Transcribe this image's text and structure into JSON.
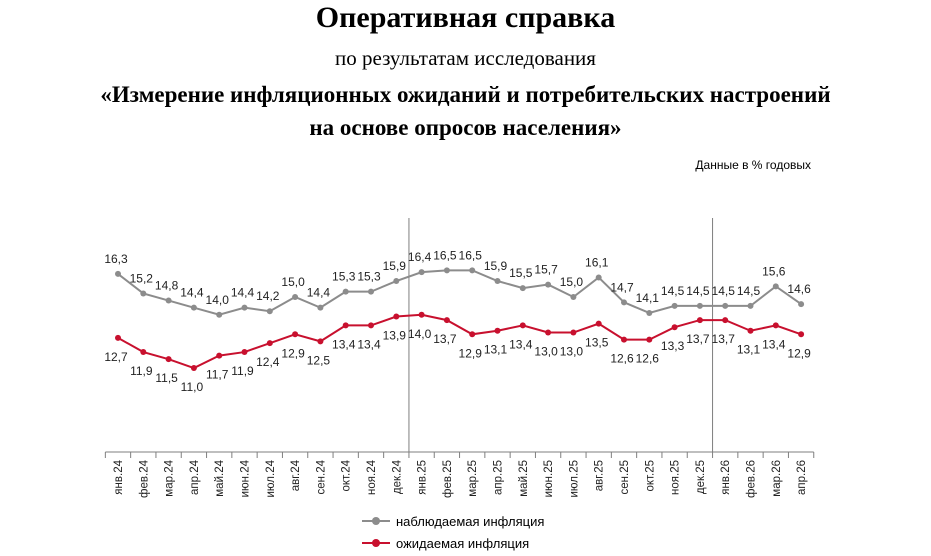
{
  "header": {
    "title": "Оперативная справка",
    "subtitle": "по результатам исследования",
    "line1": "«Измерение инфляционных ожиданий и потребительских настроений",
    "line2": "на основе опросов населения»",
    "units": "Данные в % годовых"
  },
  "colors": {
    "observed": "#8c8c8c",
    "expected": "#c8102e"
  },
  "chart_data": {
    "type": "line",
    "categories": [
      "янв.24",
      "фев.24",
      "мар.24",
      "апр.24",
      "май.24",
      "июн.24",
      "июл.24",
      "авг.24",
      "сен.24",
      "окт.24",
      "ноя.24",
      "дек.24",
      "янв.25",
      "фев.25",
      "мар.25",
      "апр.25",
      "май.25",
      "июн.25",
      "июл.25",
      "авг.25",
      "сен.25",
      "окт.25",
      "ноя.25",
      "дек.25",
      "янв.26",
      "фев.26",
      "мар.26",
      "апр.26"
    ],
    "series": [
      {
        "name": "наблюдаемая инфляция",
        "values": [
          16.3,
          15.2,
          14.8,
          14.4,
          14.0,
          14.4,
          14.2,
          15.0,
          14.4,
          15.3,
          15.3,
          15.9,
          16.4,
          16.5,
          16.5,
          15.9,
          15.5,
          15.7,
          15.0,
          16.1,
          14.7,
          14.1,
          14.5,
          14.5,
          14.5,
          14.5,
          15.6,
          14.6
        ],
        "labels": [
          "16,3",
          "15,2",
          "14,8",
          "14,4",
          "14,0",
          "14,4",
          "14,2",
          "15,0",
          "14,4",
          "15,3",
          "15,3",
          "15,9",
          "16,4",
          "16,5",
          "16,5",
          "15,9",
          "15,5",
          "15,7",
          "15,0",
          "16,1",
          "14,7",
          "14,1",
          "14,5",
          "14,5",
          "14,5",
          "14,5",
          "15,6",
          "14,6"
        ]
      },
      {
        "name": "ожидаемая инфляция",
        "values": [
          12.7,
          11.9,
          11.5,
          11.0,
          11.7,
          11.9,
          12.4,
          12.9,
          12.5,
          13.4,
          13.4,
          13.9,
          14.0,
          13.7,
          12.9,
          13.1,
          13.4,
          13.0,
          13.0,
          13.5,
          12.6,
          12.6,
          13.3,
          13.7,
          13.7,
          13.1,
          13.4,
          12.9
        ],
        "labels": [
          "12,7",
          "11,9",
          "11,5",
          "11,0",
          "11,7",
          "11,9",
          "12,4",
          "12,9",
          "12,5",
          "13,4",
          "13,4",
          "13,9",
          "14,0",
          "13,7",
          "12,9",
          "13,1",
          "13,4",
          "13,0",
          "13,0",
          "13,5",
          "12,6",
          "12,6",
          "13,3",
          "13,7",
          "13,7",
          "13,1",
          "13,4",
          "12,9"
        ]
      }
    ],
    "grid": false,
    "year_separators_after": [
      "дек.24",
      "дек.25"
    ],
    "legend_position": "bottom"
  }
}
